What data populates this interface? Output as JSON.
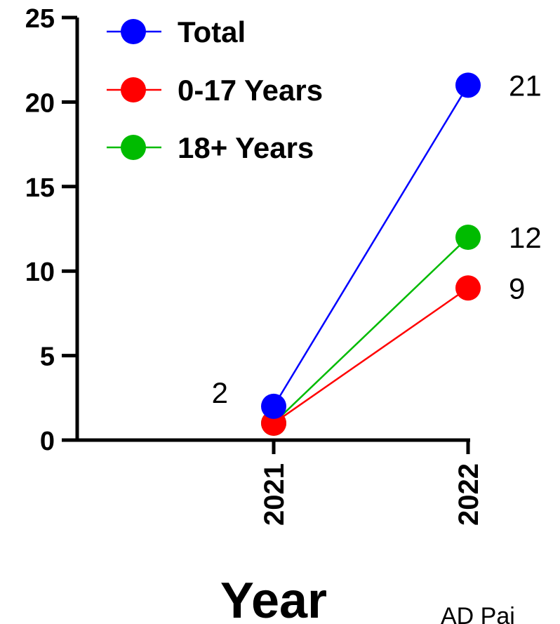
{
  "chart_data": {
    "type": "line",
    "title": "",
    "xlabel": "Year",
    "ylabel": "",
    "categories": [
      "2021",
      "2022"
    ],
    "ylim": [
      0,
      25
    ],
    "yticks": [
      0,
      5,
      10,
      15,
      20,
      25
    ],
    "grid": false,
    "legend_position": "top-left",
    "series": [
      {
        "name": "Total",
        "color": "#0000ff",
        "values": [
          2,
          21
        ]
      },
      {
        "name": "0-17 Years",
        "color": "#ff0000",
        "values": [
          1,
          9
        ]
      },
      {
        "name": "18+ Years",
        "color": "#00bb00",
        "values": [
          1,
          12
        ]
      }
    ],
    "data_labels": [
      {
        "series": "Total",
        "category": "2021",
        "text": "2"
      },
      {
        "series": "Total",
        "category": "2022",
        "text": "21"
      },
      {
        "series": "18+ Years",
        "category": "2022",
        "text": "12"
      },
      {
        "series": "0-17 Years",
        "category": "2022",
        "text": "9"
      }
    ]
  },
  "watermark": "AD Pai"
}
